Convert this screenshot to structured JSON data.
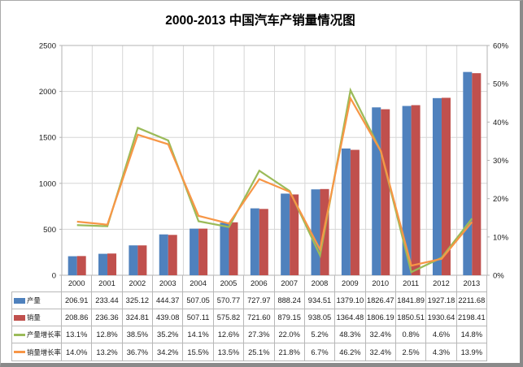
{
  "frame": {
    "background": "#ffffff",
    "edge_color": "#8a8a8a"
  },
  "chart_data": {
    "type": "combo-bar-line",
    "title": "2000-2013 中国汽车产销量情况图",
    "categories": [
      "2000",
      "2001",
      "2002",
      "2003",
      "2004",
      "2005",
      "2006",
      "2007",
      "2008",
      "2009",
      "2010",
      "2011",
      "2012",
      "2013"
    ],
    "series": [
      {
        "name": "产量",
        "kind": "bar",
        "axis": "left",
        "color": "#4F81BD",
        "values": [
          206.91,
          233.44,
          325.12,
          444.37,
          507.05,
          570.77,
          727.97,
          888.24,
          934.51,
          1379.1,
          1826.47,
          1841.89,
          1927.18,
          2211.68
        ]
      },
      {
        "name": "销量",
        "kind": "bar",
        "axis": "left",
        "color": "#C0504D",
        "values": [
          208.86,
          236.36,
          324.81,
          439.08,
          507.11,
          575.82,
          721.6,
          879.15,
          938.05,
          1364.48,
          1806.19,
          1850.51,
          1930.64,
          2198.41
        ]
      },
      {
        "name": "产量增长率",
        "kind": "line",
        "axis": "right",
        "color": "#9BBB59",
        "values": [
          13.1,
          12.8,
          38.5,
          35.2,
          14.1,
          12.6,
          27.3,
          22.0,
          5.2,
          48.3,
          32.4,
          0.8,
          4.6,
          14.8
        ]
      },
      {
        "name": "销量增长率",
        "kind": "line",
        "axis": "right",
        "color": "#F79646",
        "values": [
          14.0,
          13.2,
          36.7,
          34.2,
          15.5,
          13.5,
          25.1,
          21.8,
          6.7,
          46.2,
          32.4,
          2.5,
          4.3,
          13.9
        ]
      }
    ],
    "left_axis": {
      "min": 0,
      "max": 2500,
      "step": 500,
      "tick_labels": [
        "0",
        "500",
        "1000",
        "1500",
        "2000",
        "2500"
      ]
    },
    "right_axis": {
      "min": 0,
      "max": 60,
      "step": 10,
      "tick_labels": [
        "0%",
        "10%",
        "20%",
        "30%",
        "40%",
        "50%",
        "60%"
      ]
    },
    "gridlines": {
      "horizontal": true,
      "vertical": true,
      "color": "#d6d6d6"
    },
    "plot_border_color": "#b3b3b3",
    "data_table_shown": true,
    "value_format": {
      "bar_decimals": 2,
      "line_suffix": "%",
      "line_decimals": 1
    }
  }
}
